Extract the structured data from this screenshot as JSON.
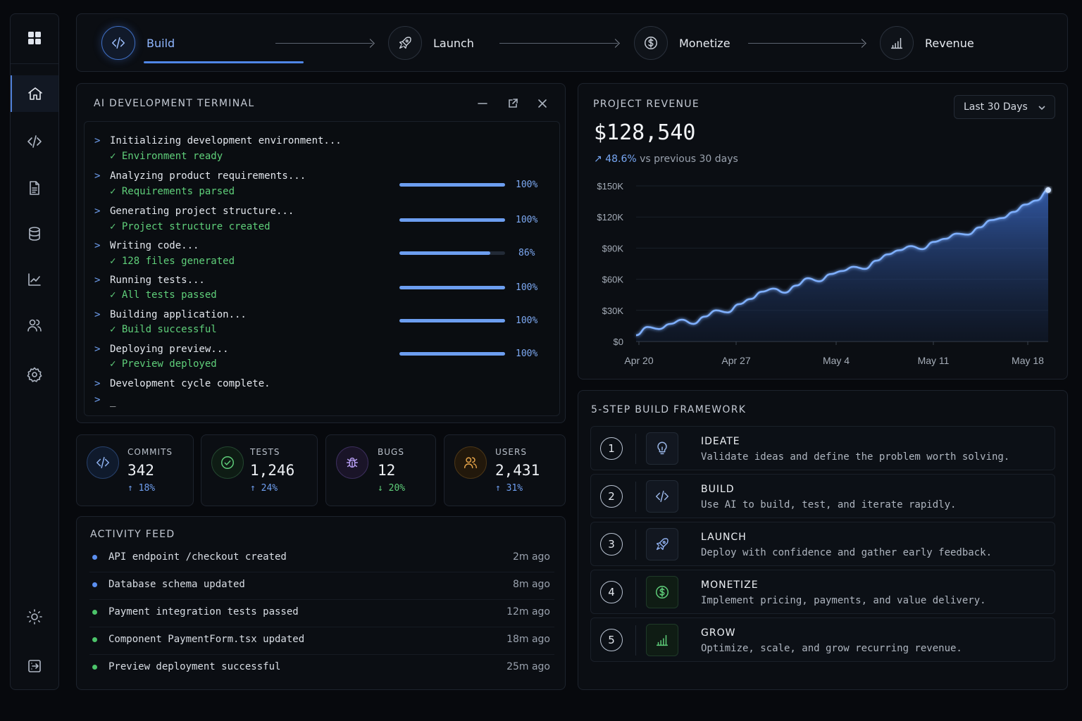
{
  "stepper": {
    "steps": [
      {
        "label": "Build",
        "icon": "code-icon"
      },
      {
        "label": "Launch",
        "icon": "rocket-icon"
      },
      {
        "label": "Monetize",
        "icon": "dollar-icon"
      },
      {
        "label": "Revenue",
        "icon": "bar-chart-icon"
      }
    ],
    "active_index": 0
  },
  "sidebar": {
    "items": [
      "grid-icon",
      "home-icon",
      "code-icon",
      "document-icon",
      "database-icon",
      "line-chart-icon",
      "users-icon",
      "settings-icon",
      "sun-icon",
      "logout-icon"
    ],
    "active": "home-icon"
  },
  "terminal": {
    "title": "AI DEVELOPMENT TERMINAL",
    "prompt": ">",
    "lines": [
      {
        "cmd": "Initializing development environment...",
        "result": "✓ Environment ready"
      },
      {
        "cmd": "Analyzing product requirements...",
        "result": "✓ Requirements parsed",
        "progress": 1.0,
        "pct": "100%"
      },
      {
        "cmd": "Generating project structure...",
        "result": "✓ Project structure created",
        "progress": 1.0,
        "pct": "100%"
      },
      {
        "cmd": "Writing code...",
        "result": "✓ 128 files generated",
        "progress": 0.86,
        "pct": "86%"
      },
      {
        "cmd": "Running tests...",
        "result": "✓ All tests passed",
        "progress": 1.0,
        "pct": "100%"
      },
      {
        "cmd": "Building application...",
        "result": "✓ Build successful",
        "progress": 1.0,
        "pct": "100%"
      },
      {
        "cmd": "Deploying preview...",
        "result": "✓ Preview deployed",
        "progress": 1.0,
        "pct": "100%"
      }
    ],
    "final": "Development cycle complete.",
    "cursor": "_"
  },
  "stats": [
    {
      "label": "COMMITS",
      "value": "342",
      "delta": "↑ 18%",
      "icon": "code-icon",
      "color": "#6f9ff0"
    },
    {
      "label": "TESTS",
      "value": "1,246",
      "delta": "↑ 24%",
      "icon": "check-circle-icon",
      "color": "#6f9ff0"
    },
    {
      "label": "BUGS",
      "value": "12",
      "delta": "↓ 20%",
      "icon": "bug-icon",
      "color": "#5fcf7a"
    },
    {
      "label": "USERS",
      "value": "2,431",
      "delta": "↑ 31%",
      "icon": "users-icon",
      "color": "#6f9ff0"
    }
  ],
  "activity": {
    "title": "ACTIVITY FEED",
    "items": [
      {
        "text": "API endpoint /checkout created",
        "time": "2m ago",
        "color": "#5b8ff0"
      },
      {
        "text": "Database schema updated",
        "time": "8m ago",
        "color": "#5b8ff0"
      },
      {
        "text": "Payment integration tests passed",
        "time": "12m ago",
        "color": "#4cc46a"
      },
      {
        "text": "Component PaymentForm.tsx updated",
        "time": "18m ago",
        "color": "#4cc46a"
      },
      {
        "text": "Preview deployment successful",
        "time": "25m ago",
        "color": "#4cc46a"
      }
    ]
  },
  "revenue": {
    "title": "PROJECT REVENUE",
    "range": "Last 30 Days",
    "value": "$128,540",
    "delta_pct": "48.6%",
    "delta_text": "vs previous 30 days"
  },
  "chart_data": {
    "type": "area",
    "x_ticks": [
      "Apr 20",
      "Apr 27",
      "May 4",
      "May 11",
      "May 18"
    ],
    "y_ticks": [
      "$150K",
      "$120K",
      "$90K",
      "$60K",
      "$30K",
      "$0"
    ],
    "ylim": [
      0,
      150000
    ],
    "grid": true,
    "series": [
      {
        "values": [
          6000,
          14000,
          12000,
          17000,
          21000,
          17000,
          24000,
          30000,
          28000,
          36000,
          41000,
          48000,
          51000,
          47000,
          54000,
          61000,
          58000,
          65000,
          68000,
          72000,
          70000,
          78000,
          84000,
          88000,
          92000,
          89000,
          96000,
          99000,
          104000,
          103000,
          110000,
          117000,
          119000,
          125000,
          132000,
          136000,
          146000
        ]
      }
    ]
  },
  "framework": {
    "title": "5-STEP BUILD FRAMEWORK",
    "steps": [
      {
        "num": "1",
        "title": "IDEATE",
        "desc": "Validate ideas and define the problem worth solving.",
        "icon": "lightbulb-icon",
        "color": "#9ab6e6"
      },
      {
        "num": "2",
        "title": "BUILD",
        "desc": "Use AI to build, test, and iterate rapidly.",
        "icon": "code-icon",
        "color": "#9ab6e6"
      },
      {
        "num": "3",
        "title": "LAUNCH",
        "desc": "Deploy with confidence and gather early feedback.",
        "icon": "rocket-icon",
        "color": "#8fb0ee"
      },
      {
        "num": "4",
        "title": "MONETIZE",
        "desc": "Implement pricing, payments, and value delivery.",
        "icon": "dollar-icon",
        "color": "#5fcf7a"
      },
      {
        "num": "5",
        "title": "GROW",
        "desc": "Optimize, scale, and grow recurring revenue.",
        "icon": "bar-chart-icon",
        "color": "#5fcf7a"
      }
    ]
  }
}
